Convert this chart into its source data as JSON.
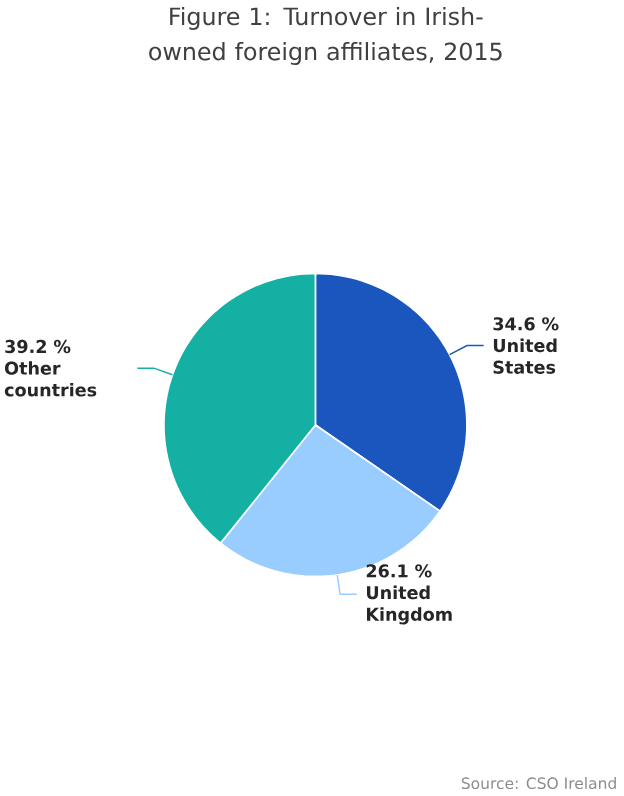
{
  "chart_data": {
    "type": "pie",
    "title": "Figure 1: Turnover in Irish-owned foreign affiliates, 2015",
    "categories": [
      "United States",
      "United Kingdom",
      "Other countries"
    ],
    "values": [
      34.6,
      26.1,
      39.2
    ],
    "value_labels": [
      "34.6 %",
      "26.1 %",
      "39.2 %"
    ],
    "colors": [
      "#1a56be",
      "#99ccff",
      "#14b0a4"
    ],
    "annotations": [
      "Source: CSO Ireland"
    ]
  }
}
